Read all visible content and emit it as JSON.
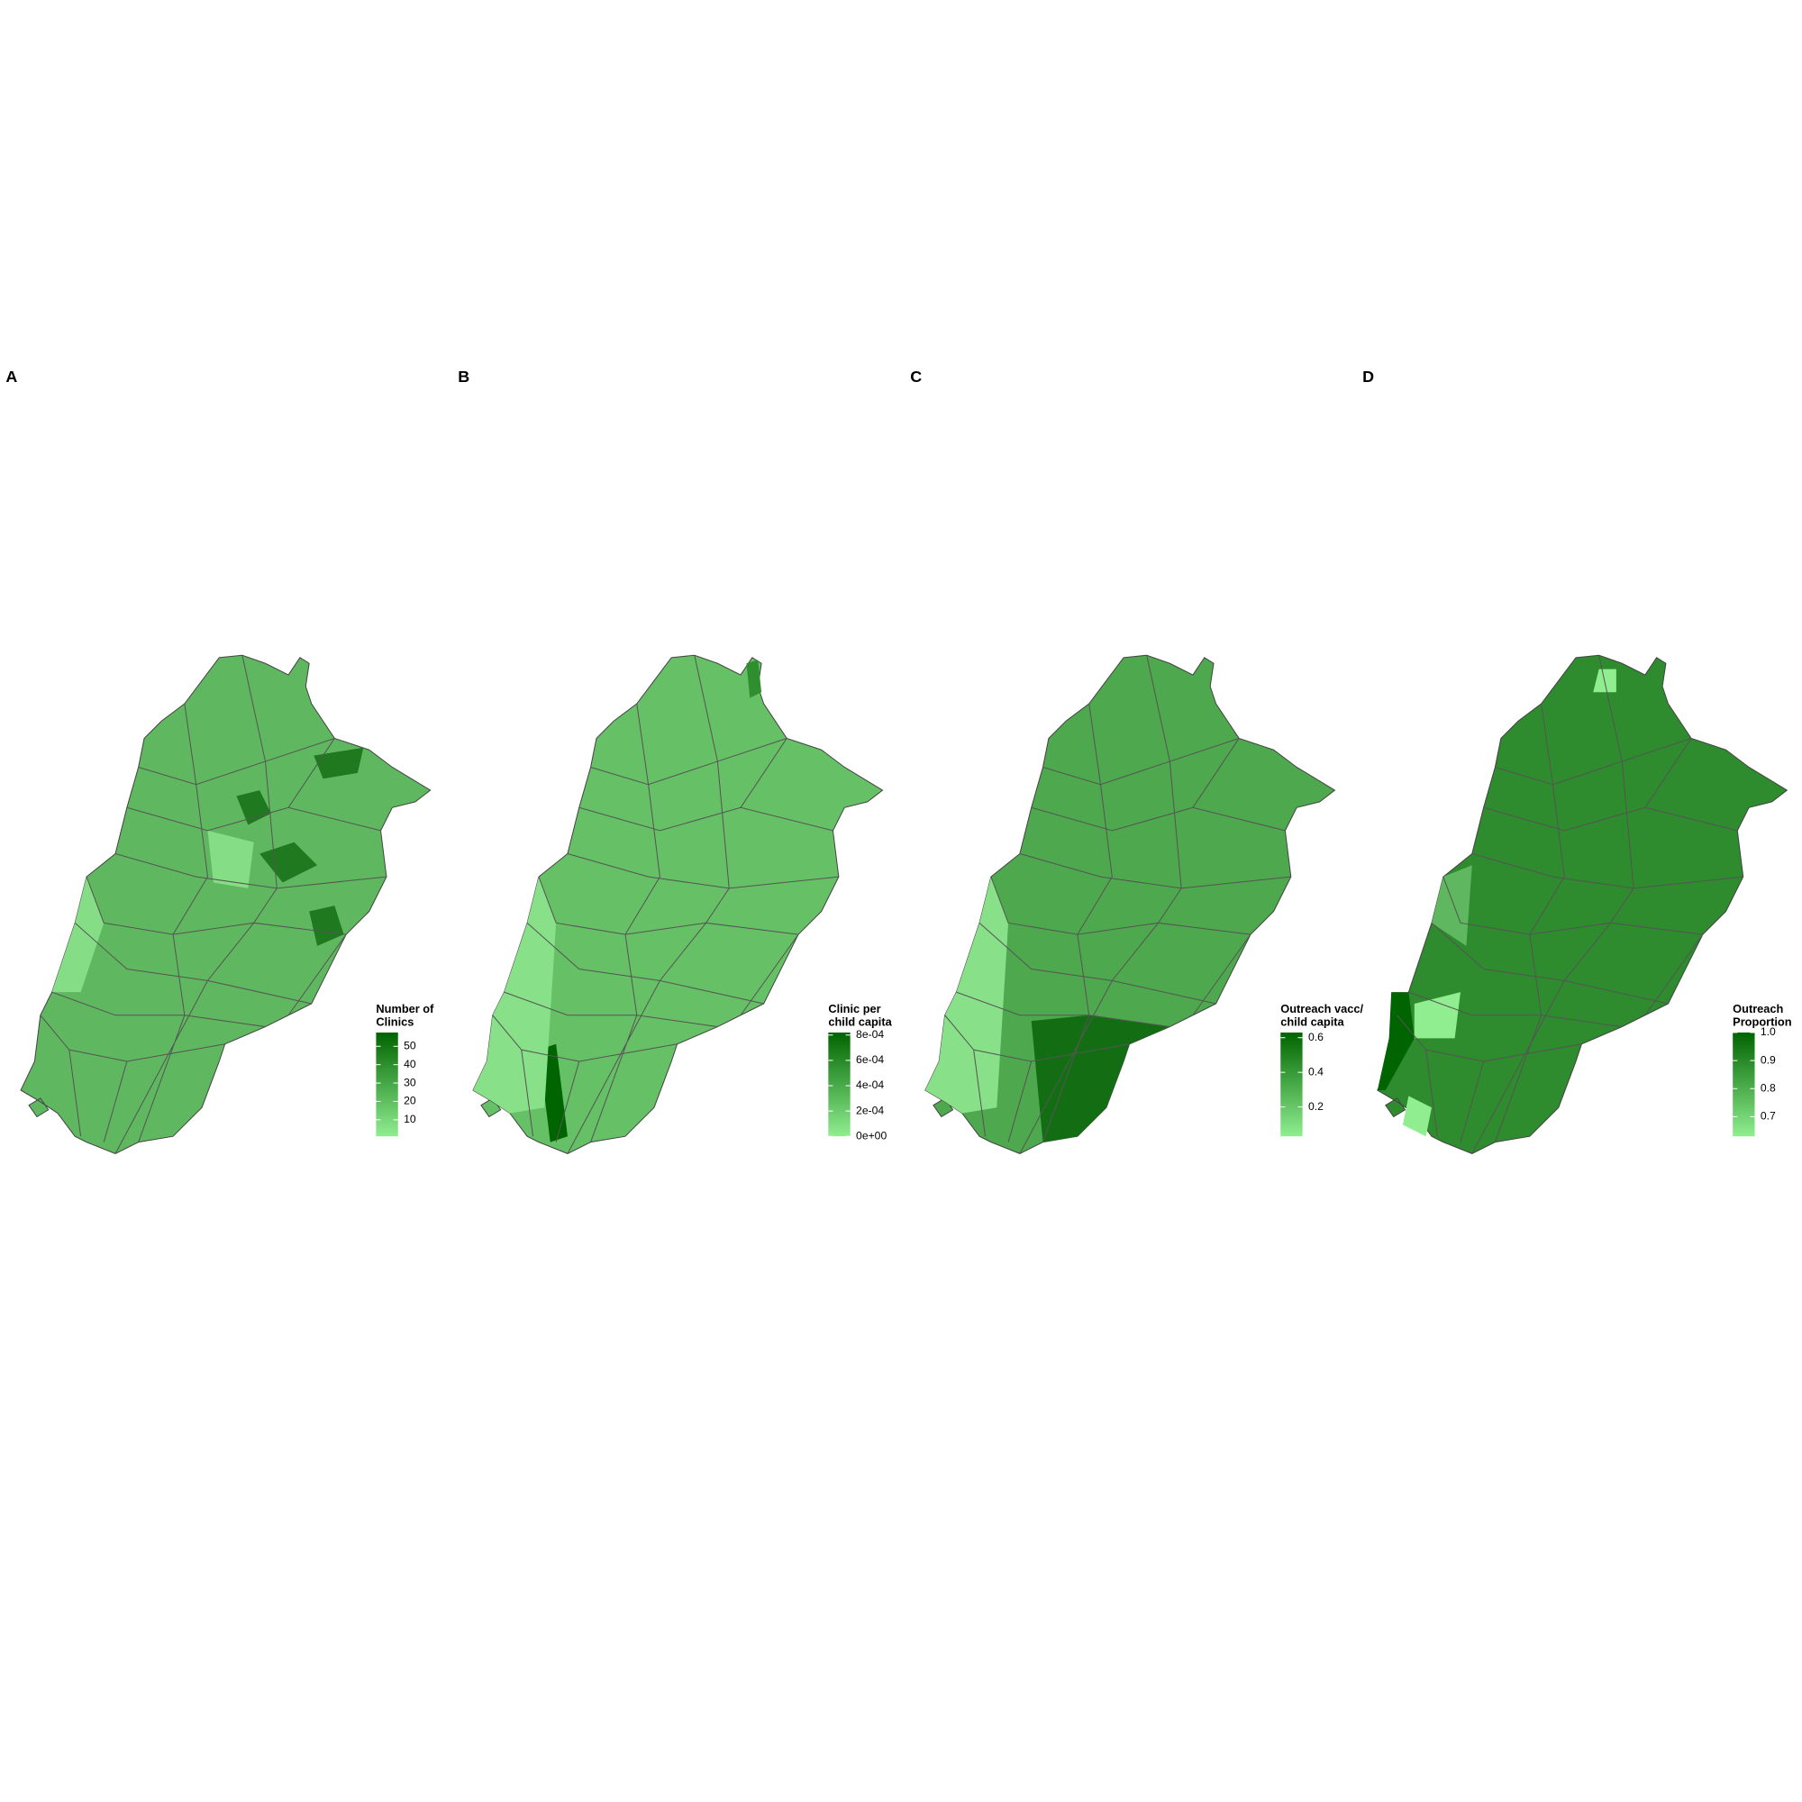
{
  "panels": [
    {
      "label": "A",
      "legend": {
        "title": [
          "Number of",
          "Clinics"
        ],
        "lim": [
          1,
          57.5
        ],
        "ticks": [
          10,
          20,
          30,
          40,
          50
        ]
      }
    },
    {
      "label": "B",
      "legend": {
        "title": [
          "Clinic per",
          "child capita"
        ],
        "lim": [
          0,
          0.00082
        ],
        "ticks": [
          {
            "value": 0,
            "label": "0e+00"
          },
          {
            "value": 0.0002,
            "label": "2e-04"
          },
          {
            "value": 0.0004,
            "label": "4e-04"
          },
          {
            "value": 0.0006,
            "label": "6e-04"
          },
          {
            "value": 0.0008,
            "label": "8e-04"
          }
        ]
      }
    },
    {
      "label": "C",
      "legend": {
        "title": [
          "Outreach vacc/",
          "child capita"
        ],
        "lim": [
          0.03,
          0.63
        ],
        "ticks": [
          0.2,
          0.4,
          0.6
        ]
      }
    },
    {
      "label": "D",
      "legend": {
        "title": [
          "Outreach",
          "Proportion"
        ],
        "lim": [
          0.63,
          1.0
        ],
        "ticks": [
          0.7,
          0.8,
          0.9,
          {
            "value": 1,
            "label": "1.0"
          }
        ]
      }
    }
  ]
}
